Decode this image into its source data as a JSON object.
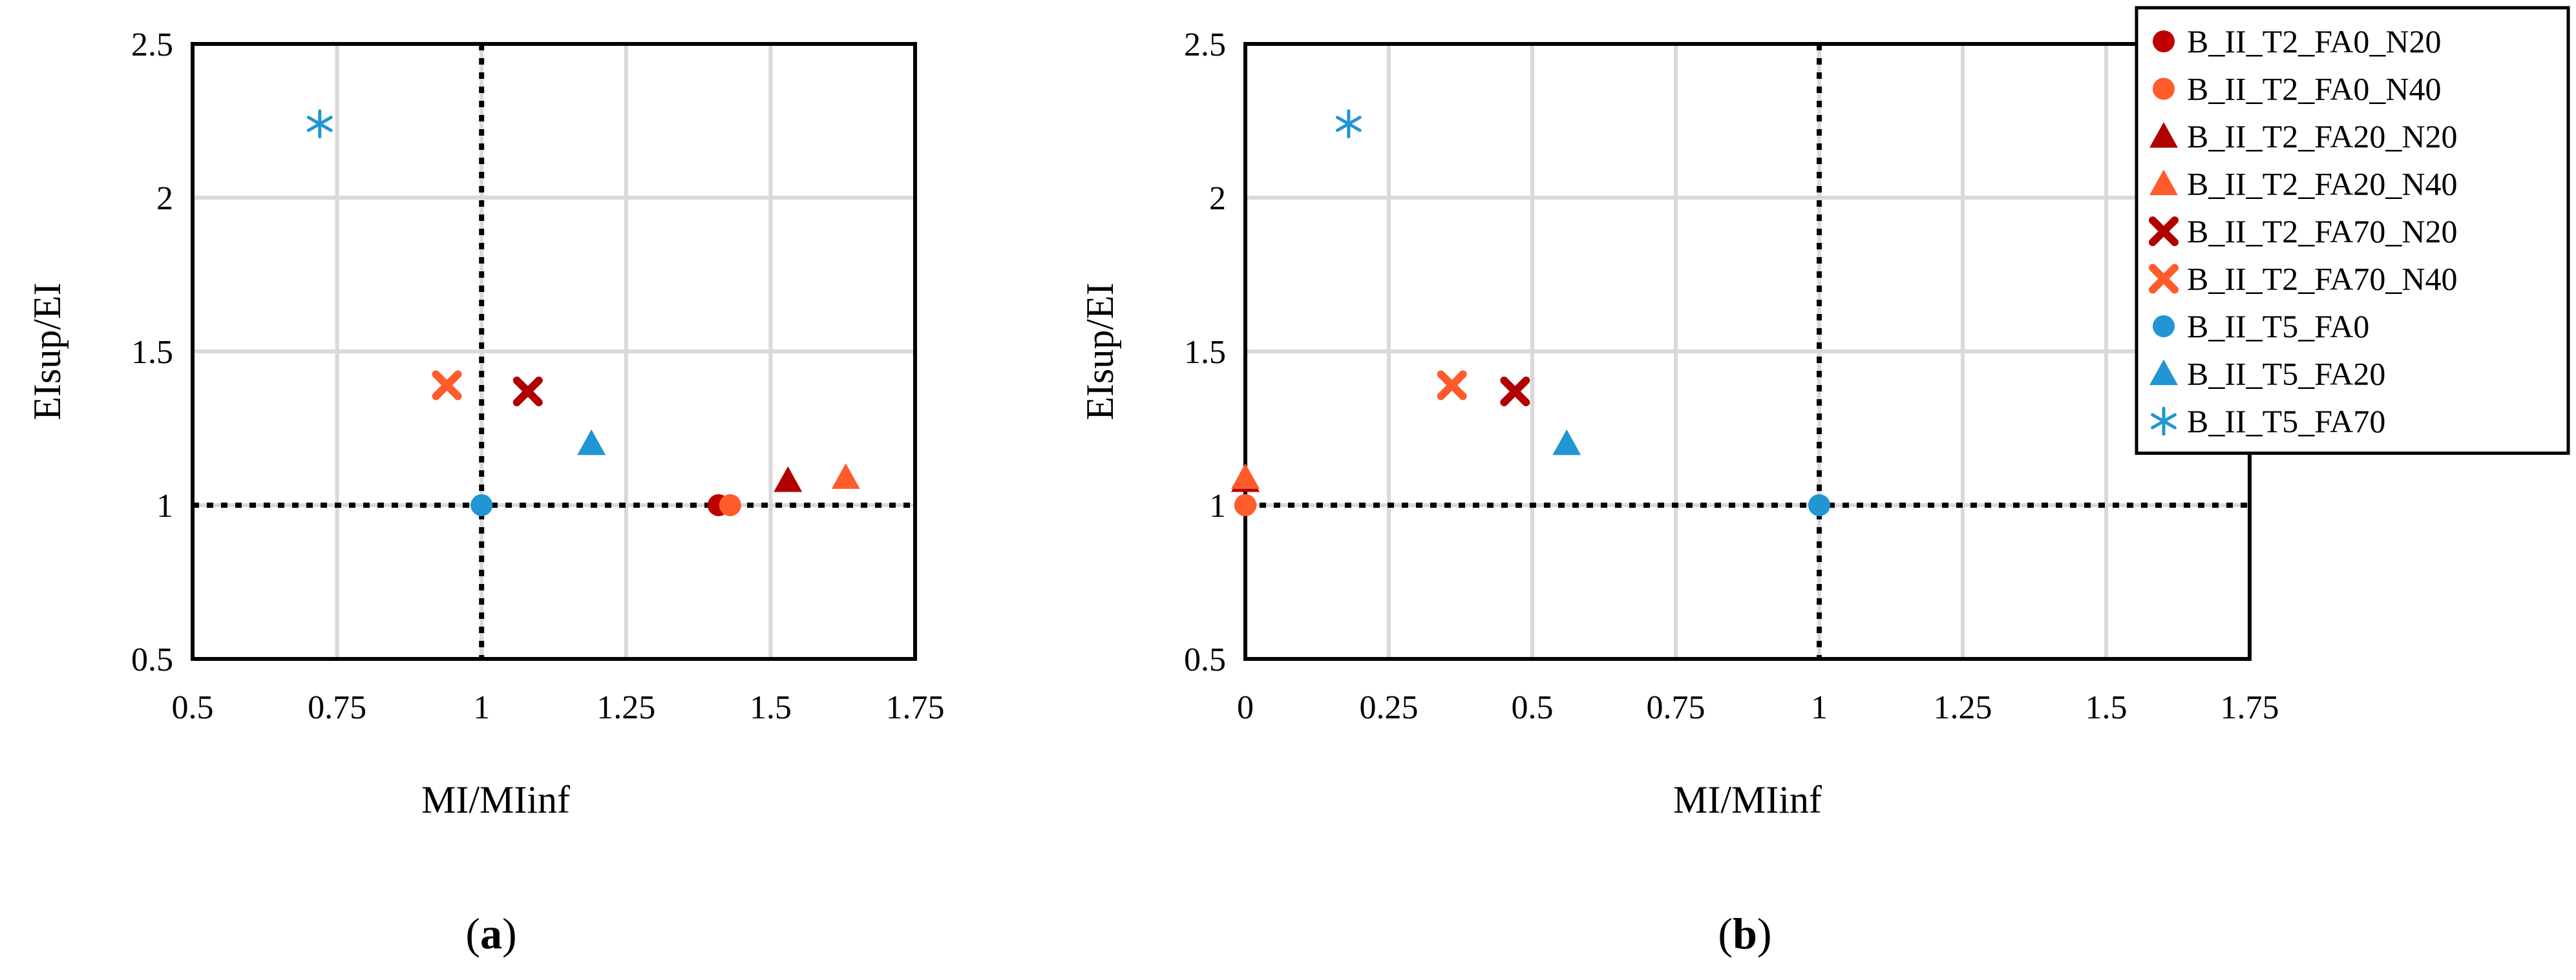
{
  "series_styles": [
    {
      "name": "B_II_T2_FA0_N20",
      "color": "#c00000",
      "marker": "circle"
    },
    {
      "name": "B_II_T2_FA0_N40",
      "color": "#ff5b2b",
      "marker": "circle"
    },
    {
      "name": "B_II_T2_FA20_N20",
      "color": "#b00000",
      "marker": "triangle"
    },
    {
      "name": "B_II_T2_FA20_N40",
      "color": "#ff5b2b",
      "marker": "triangle"
    },
    {
      "name": "B_II_T2_FA70_N20",
      "color": "#b00000",
      "marker": "cross"
    },
    {
      "name": "B_II_T2_FA70_N40",
      "color": "#ff5b2b",
      "marker": "cross"
    },
    {
      "name": "B_II_T5_FA0",
      "color": "#2196d3",
      "marker": "circle"
    },
    {
      "name": "B_II_T5_FA20",
      "color": "#2196d3",
      "marker": "triangle"
    },
    {
      "name": "B_II_T5_FA70",
      "color": "#2196d3",
      "marker": "asterisk"
    }
  ],
  "chart_data": [
    {
      "type": "scatter",
      "panel_label_prefix": "(",
      "panel_label_bold": "a",
      "panel_label_suffix": ")",
      "xlabel": "MI/MIinf",
      "ylabel": "EIsup/EI",
      "xlim": [
        0.5,
        1.75
      ],
      "ylim": [
        0.5,
        2.5
      ],
      "xticks": [
        0.5,
        0.75,
        1,
        1.25,
        1.5,
        1.75
      ],
      "xtick_labels": [
        "0.5",
        "0.75",
        "1",
        "1.25",
        "1.5",
        "1.75"
      ],
      "yticks": [
        0.5,
        1,
        1.5,
        2,
        2.5
      ],
      "ytick_labels": [
        "0.5",
        "1",
        "1.5",
        "2",
        "2.5"
      ],
      "ref_lines": {
        "x": 1,
        "y": 1
      },
      "legend": false,
      "series": [
        {
          "name": "B_II_T2_FA0_N20",
          "x": [
            1.41
          ],
          "y": [
            1.0
          ]
        },
        {
          "name": "B_II_T2_FA0_N40",
          "x": [
            1.43
          ],
          "y": [
            1.0
          ]
        },
        {
          "name": "B_II_T2_FA20_N20",
          "x": [
            1.53
          ],
          "y": [
            1.08
          ]
        },
        {
          "name": "B_II_T2_FA20_N40",
          "x": [
            1.63
          ],
          "y": [
            1.09
          ]
        },
        {
          "name": "B_II_T2_FA70_N20",
          "x": [
            1.08
          ],
          "y": [
            1.37
          ]
        },
        {
          "name": "B_II_T2_FA70_N40",
          "x": [
            0.94
          ],
          "y": [
            1.39
          ]
        },
        {
          "name": "B_II_T5_FA0",
          "x": [
            1.0
          ],
          "y": [
            1.0
          ]
        },
        {
          "name": "B_II_T5_FA20",
          "x": [
            1.19
          ],
          "y": [
            1.2
          ]
        },
        {
          "name": "B_II_T5_FA70",
          "x": [
            0.72
          ],
          "y": [
            2.24
          ]
        }
      ]
    },
    {
      "type": "scatter",
      "panel_label_prefix": "(",
      "panel_label_bold": "b",
      "panel_label_suffix": ")",
      "xlabel": "MI/MIinf",
      "ylabel": "EIsup/EI",
      "xlim": [
        0,
        1.75
      ],
      "ylim": [
        0.5,
        2.5
      ],
      "xticks": [
        0,
        0.25,
        0.5,
        0.75,
        1,
        1.25,
        1.5,
        1.75
      ],
      "xtick_labels": [
        "0",
        "0.25",
        "0.5",
        "0.75",
        "1",
        "1.25",
        "1.5",
        "1.75"
      ],
      "yticks": [
        0.5,
        1,
        1.5,
        2,
        2.5
      ],
      "ytick_labels": [
        "0.5",
        "1",
        "1.5",
        "2",
        "2.5"
      ],
      "ref_lines": {
        "x": 1,
        "y": 1
      },
      "legend": true,
      "legend_position": "top-right",
      "series": [
        {
          "name": "B_II_T2_FA0_N20",
          "x": [
            0.0
          ],
          "y": [
            1.0
          ]
        },
        {
          "name": "B_II_T2_FA0_N40",
          "x": [
            0.0
          ],
          "y": [
            1.0
          ]
        },
        {
          "name": "B_II_T2_FA20_N20",
          "x": [
            0.0
          ],
          "y": [
            1.08
          ]
        },
        {
          "name": "B_II_T2_FA20_N40",
          "x": [
            0.0
          ],
          "y": [
            1.09
          ]
        },
        {
          "name": "B_II_T2_FA70_N20",
          "x": [
            0.47
          ],
          "y": [
            1.37
          ]
        },
        {
          "name": "B_II_T2_FA70_N40",
          "x": [
            0.36
          ],
          "y": [
            1.39
          ]
        },
        {
          "name": "B_II_T5_FA0",
          "x": [
            1.0
          ],
          "y": [
            1.0
          ]
        },
        {
          "name": "B_II_T5_FA20",
          "x": [
            0.56
          ],
          "y": [
            1.2
          ]
        },
        {
          "name": "B_II_T5_FA70",
          "x": [
            0.18
          ],
          "y": [
            2.24
          ]
        }
      ]
    }
  ]
}
